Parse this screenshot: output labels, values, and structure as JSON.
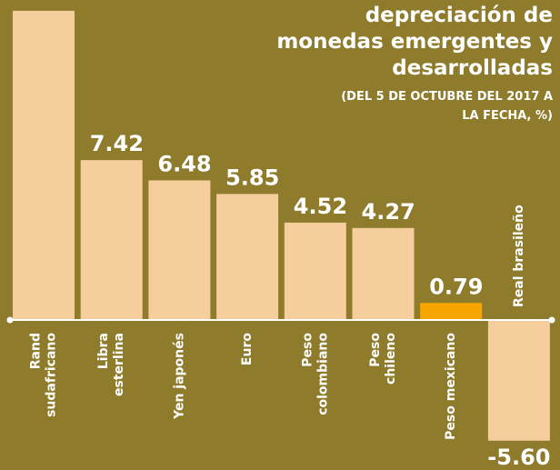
{
  "chart_data": {
    "type": "bar",
    "title": [
      "depreciación de",
      "monedas emergentes y",
      "desarrolladas"
    ],
    "subtitle": [
      "(DEL 5 DE OCTUBRE DEL 2017 A",
      "LA FECHA, %)"
    ],
    "categories": [
      [
        "Rand",
        "sudafricano"
      ],
      [
        "Libra",
        "esterlina"
      ],
      [
        "Yen japonés"
      ],
      [
        "Euro"
      ],
      [
        "Peso",
        "colombiano"
      ],
      [
        "Peso",
        "chileno"
      ],
      [
        "Peso mexicano"
      ],
      [
        "Real brasileño"
      ]
    ],
    "values": [
      14.35,
      7.42,
      6.48,
      5.85,
      4.52,
      4.27,
      0.79,
      -5.6
    ],
    "value_labels": [
      null,
      "7.42",
      "6.48",
      "5.85",
      "4.52",
      "4.27",
      "0.79",
      "-5.60"
    ],
    "colors": [
      "#f6cd9c",
      "#f6cd9c",
      "#f6cd9c",
      "#f6cd9c",
      "#f6cd9c",
      "#f6cd9c",
      "#f7a600",
      "#f6cd9c"
    ],
    "ylim": [
      -6.96,
      14.85
    ]
  }
}
